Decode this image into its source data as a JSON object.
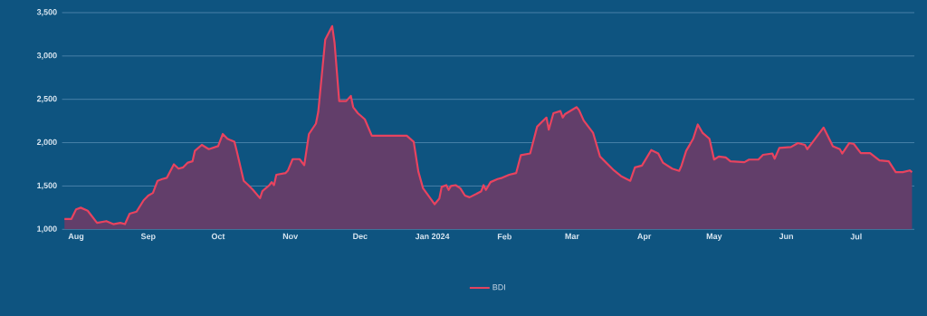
{
  "chart_data": {
    "type": "area",
    "x": [
      "2023-07-27",
      "2023-07-30",
      "2023-08-01",
      "2023-08-03",
      "2023-08-06",
      "2023-08-10",
      "2023-08-14",
      "2023-08-17",
      "2023-08-20",
      "2023-08-22",
      "2023-08-24",
      "2023-08-27",
      "2023-08-30",
      "2023-09-01",
      "2023-09-03",
      "2023-09-05",
      "2023-09-07",
      "2023-09-09",
      "2023-09-12",
      "2023-09-14",
      "2023-09-16",
      "2023-09-18",
      "2023-09-20",
      "2023-09-21",
      "2023-09-24",
      "2023-09-27",
      "2023-10-01",
      "2023-10-03",
      "2023-10-05",
      "2023-10-08",
      "2023-10-09",
      "2023-10-12",
      "2023-10-14",
      "2023-10-16",
      "2023-10-19",
      "2023-10-20",
      "2023-10-23",
      "2023-10-24",
      "2023-10-25",
      "2023-10-26",
      "2023-10-30",
      "2023-10-31",
      "2023-11-02",
      "2023-11-05",
      "2023-11-07",
      "2023-11-09",
      "2023-11-12",
      "2023-11-13",
      "2023-11-16",
      "2023-11-19",
      "2023-11-20",
      "2023-11-22",
      "2023-11-25",
      "2023-11-27",
      "2023-11-28",
      "2023-11-30",
      "2023-12-03",
      "2023-12-06",
      "2023-12-21",
      "2023-12-24",
      "2023-12-26",
      "2023-12-28",
      "2024-01-02",
      "2024-01-04",
      "2024-01-05",
      "2024-01-07",
      "2024-01-08",
      "2024-01-09",
      "2024-01-11",
      "2024-01-13",
      "2024-01-15",
      "2024-01-17",
      "2024-01-20",
      "2024-01-22",
      "2024-01-23",
      "2024-01-24",
      "2024-01-26",
      "2024-01-29",
      "2024-01-31",
      "2024-02-03",
      "2024-02-06",
      "2024-02-08",
      "2024-02-12",
      "2024-02-15",
      "2024-02-19",
      "2024-02-20",
      "2024-02-22",
      "2024-02-25",
      "2024-02-26",
      "2024-02-27",
      "2024-03-03",
      "2024-03-04",
      "2024-03-06",
      "2024-03-10",
      "2024-03-13",
      "2024-03-19",
      "2024-03-22",
      "2024-03-26",
      "2024-03-28",
      "2024-03-31",
      "2024-04-04",
      "2024-04-07",
      "2024-04-09",
      "2024-04-13",
      "2024-04-16",
      "2024-04-17",
      "2024-04-19",
      "2024-04-22",
      "2024-04-24",
      "2024-04-26",
      "2024-04-29",
      "2024-05-01",
      "2024-05-03",
      "2024-05-06",
      "2024-05-08",
      "2024-05-14",
      "2024-05-16",
      "2024-05-20",
      "2024-05-22",
      "2024-05-26",
      "2024-05-27",
      "2024-05-29",
      "2024-06-03",
      "2024-06-06",
      "2024-06-09",
      "2024-06-10",
      "2024-06-13",
      "2024-06-17",
      "2024-06-21",
      "2024-06-24",
      "2024-06-25",
      "2024-06-28",
      "2024-06-30",
      "2024-07-03",
      "2024-07-07",
      "2024-07-11",
      "2024-07-15",
      "2024-07-18",
      "2024-07-21",
      "2024-07-24",
      "2024-07-25"
    ],
    "series": [
      {
        "name": "BDI",
        "color": "#e8435f",
        "values": [
          1120,
          1120,
          1230,
          1250,
          1215,
          1075,
          1095,
          1060,
          1075,
          1060,
          1180,
          1205,
          1335,
          1390,
          1420,
          1560,
          1580,
          1595,
          1750,
          1700,
          1715,
          1770,
          1785,
          1905,
          1975,
          1925,
          1960,
          2100,
          2045,
          2010,
          1905,
          1560,
          1510,
          1455,
          1360,
          1440,
          1510,
          1545,
          1510,
          1630,
          1650,
          1680,
          1810,
          1810,
          1740,
          2100,
          2220,
          2355,
          3190,
          3345,
          3155,
          2480,
          2480,
          2540,
          2410,
          2340,
          2270,
          2080,
          2080,
          2010,
          1665,
          1475,
          1290,
          1355,
          1490,
          1510,
          1455,
          1500,
          1510,
          1475,
          1390,
          1370,
          1410,
          1440,
          1510,
          1455,
          1545,
          1580,
          1595,
          1630,
          1650,
          1855,
          1875,
          2185,
          2290,
          2150,
          2340,
          2365,
          2290,
          2330,
          2410,
          2375,
          2255,
          2115,
          1840,
          1680,
          1615,
          1560,
          1715,
          1735,
          1915,
          1875,
          1770,
          1700,
          1675,
          1735,
          1905,
          2045,
          2210,
          2115,
          2045,
          1805,
          1840,
          1830,
          1785,
          1775,
          1805,
          1805,
          1860,
          1875,
          1815,
          1940,
          1950,
          1995,
          1975,
          1925,
          2030,
          2175,
          1960,
          1925,
          1875,
          1995,
          1985,
          1880,
          1880,
          1795,
          1785,
          1660,
          1660,
          1680,
          1660
        ]
      }
    ],
    "xlim": [
      "2023-07-26",
      "2024-07-26"
    ],
    "ylim": [
      1000,
      3500
    ],
    "xticks": [
      {
        "value": "2023-08-01",
        "label": "Aug"
      },
      {
        "value": "2023-09-01",
        "label": "Sep"
      },
      {
        "value": "2023-10-01",
        "label": "Oct"
      },
      {
        "value": "2023-11-01",
        "label": "Nov"
      },
      {
        "value": "2023-12-01",
        "label": "Dec"
      },
      {
        "value": "2024-01-01",
        "label": "Jan 2024"
      },
      {
        "value": "2024-02-01",
        "label": "Feb"
      },
      {
        "value": "2024-03-01",
        "label": "Mar"
      },
      {
        "value": "2024-04-01",
        "label": "Apr"
      },
      {
        "value": "2024-05-01",
        "label": "May"
      },
      {
        "value": "2024-06-01",
        "label": "Jun"
      },
      {
        "value": "2024-07-01",
        "label": "Jul"
      }
    ],
    "yticks": [
      {
        "value": 1000,
        "label": "1,000"
      },
      {
        "value": 1500,
        "label": "1,500"
      },
      {
        "value": 2000,
        "label": "2,000"
      },
      {
        "value": 2500,
        "label": "2,500"
      },
      {
        "value": 3000,
        "label": "3,000"
      },
      {
        "value": 3500,
        "label": "3,500"
      }
    ],
    "grid": "y",
    "legend": "bottom"
  }
}
